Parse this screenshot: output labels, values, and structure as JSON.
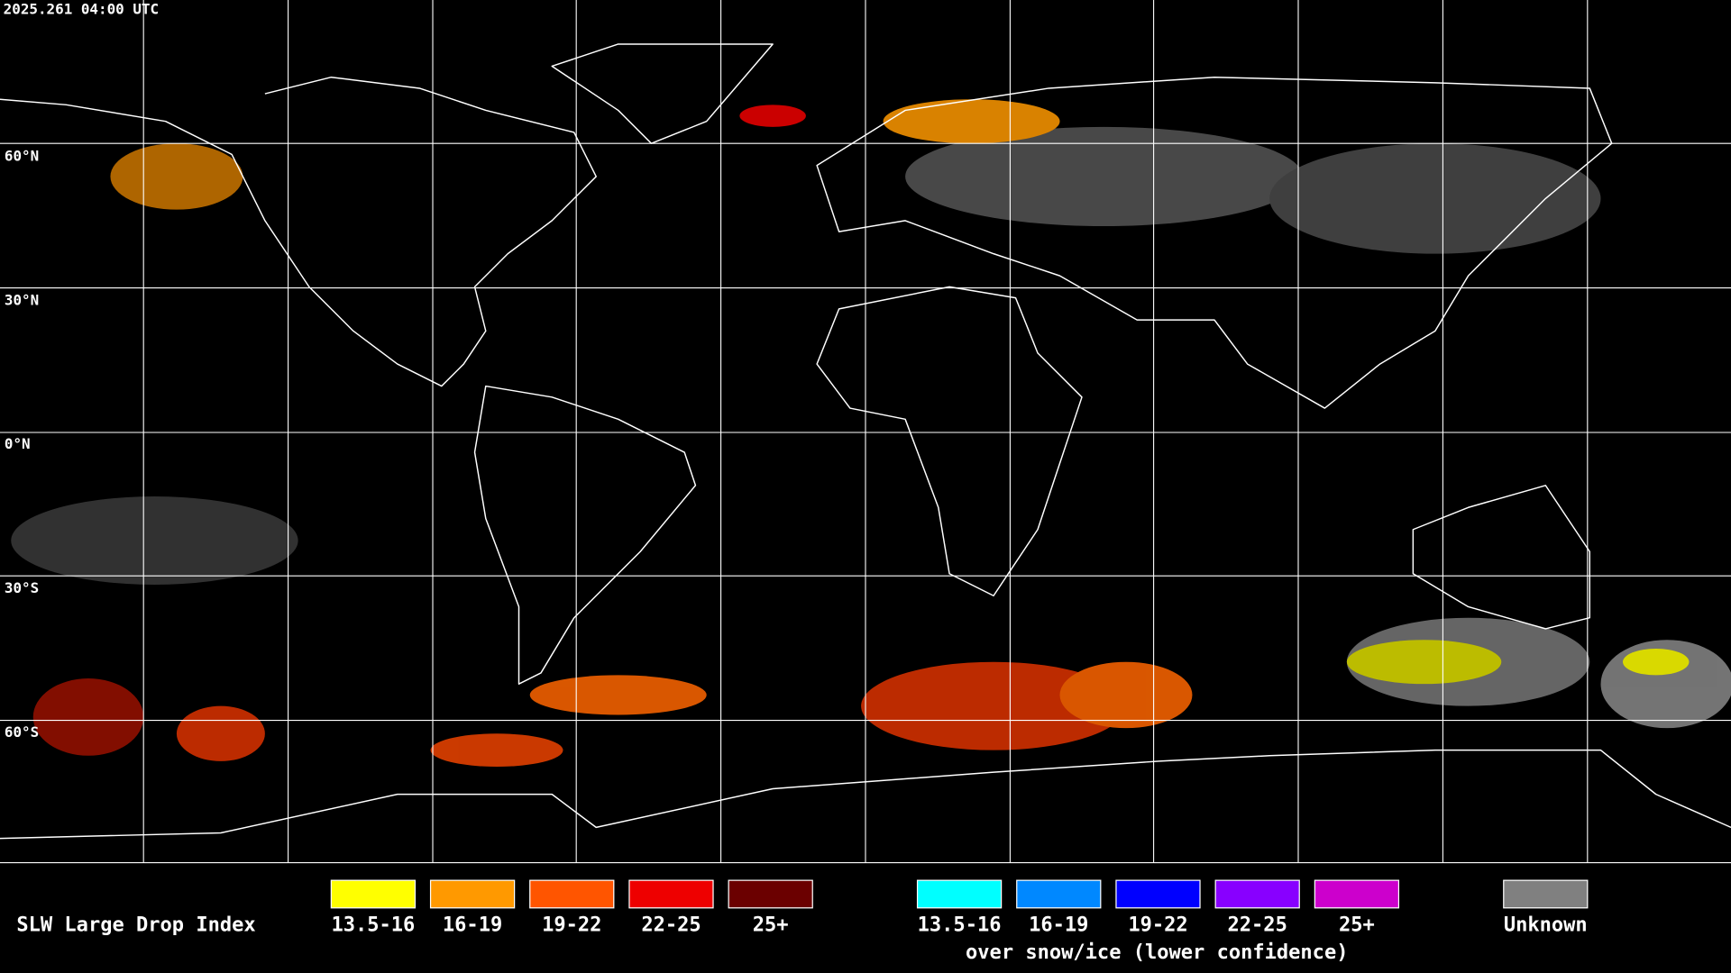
{
  "timestamp": "2025.261 04:00 UTC",
  "latitude_labels": [
    "60°N",
    "30°N",
    "0°N",
    "30°S",
    "60°S"
  ],
  "legend": {
    "title": "SLW Large Drop Index",
    "items": [
      {
        "label": "13.5-16",
        "color": "#ffff00"
      },
      {
        "label": "16-19",
        "color": "#ff9900"
      },
      {
        "label": "19-22",
        "color": "#ff5500"
      },
      {
        "label": "22-25",
        "color": "#ee0000"
      },
      {
        "label": "25+",
        "color": "#6b0000"
      }
    ],
    "snow_ice_items": [
      {
        "label": "13.5-16",
        "color": "#00ffff"
      },
      {
        "label": "16-19",
        "color": "#0088ff"
      },
      {
        "label": "19-22",
        "color": "#0000ff"
      },
      {
        "label": "22-25",
        "color": "#8800ff"
      },
      {
        "label": "25+",
        "color": "#cc00cc"
      }
    ],
    "snow_ice_caption": "over snow/ice (lower confidence)",
    "unknown": {
      "label": "Unknown",
      "color": "#808080"
    }
  }
}
